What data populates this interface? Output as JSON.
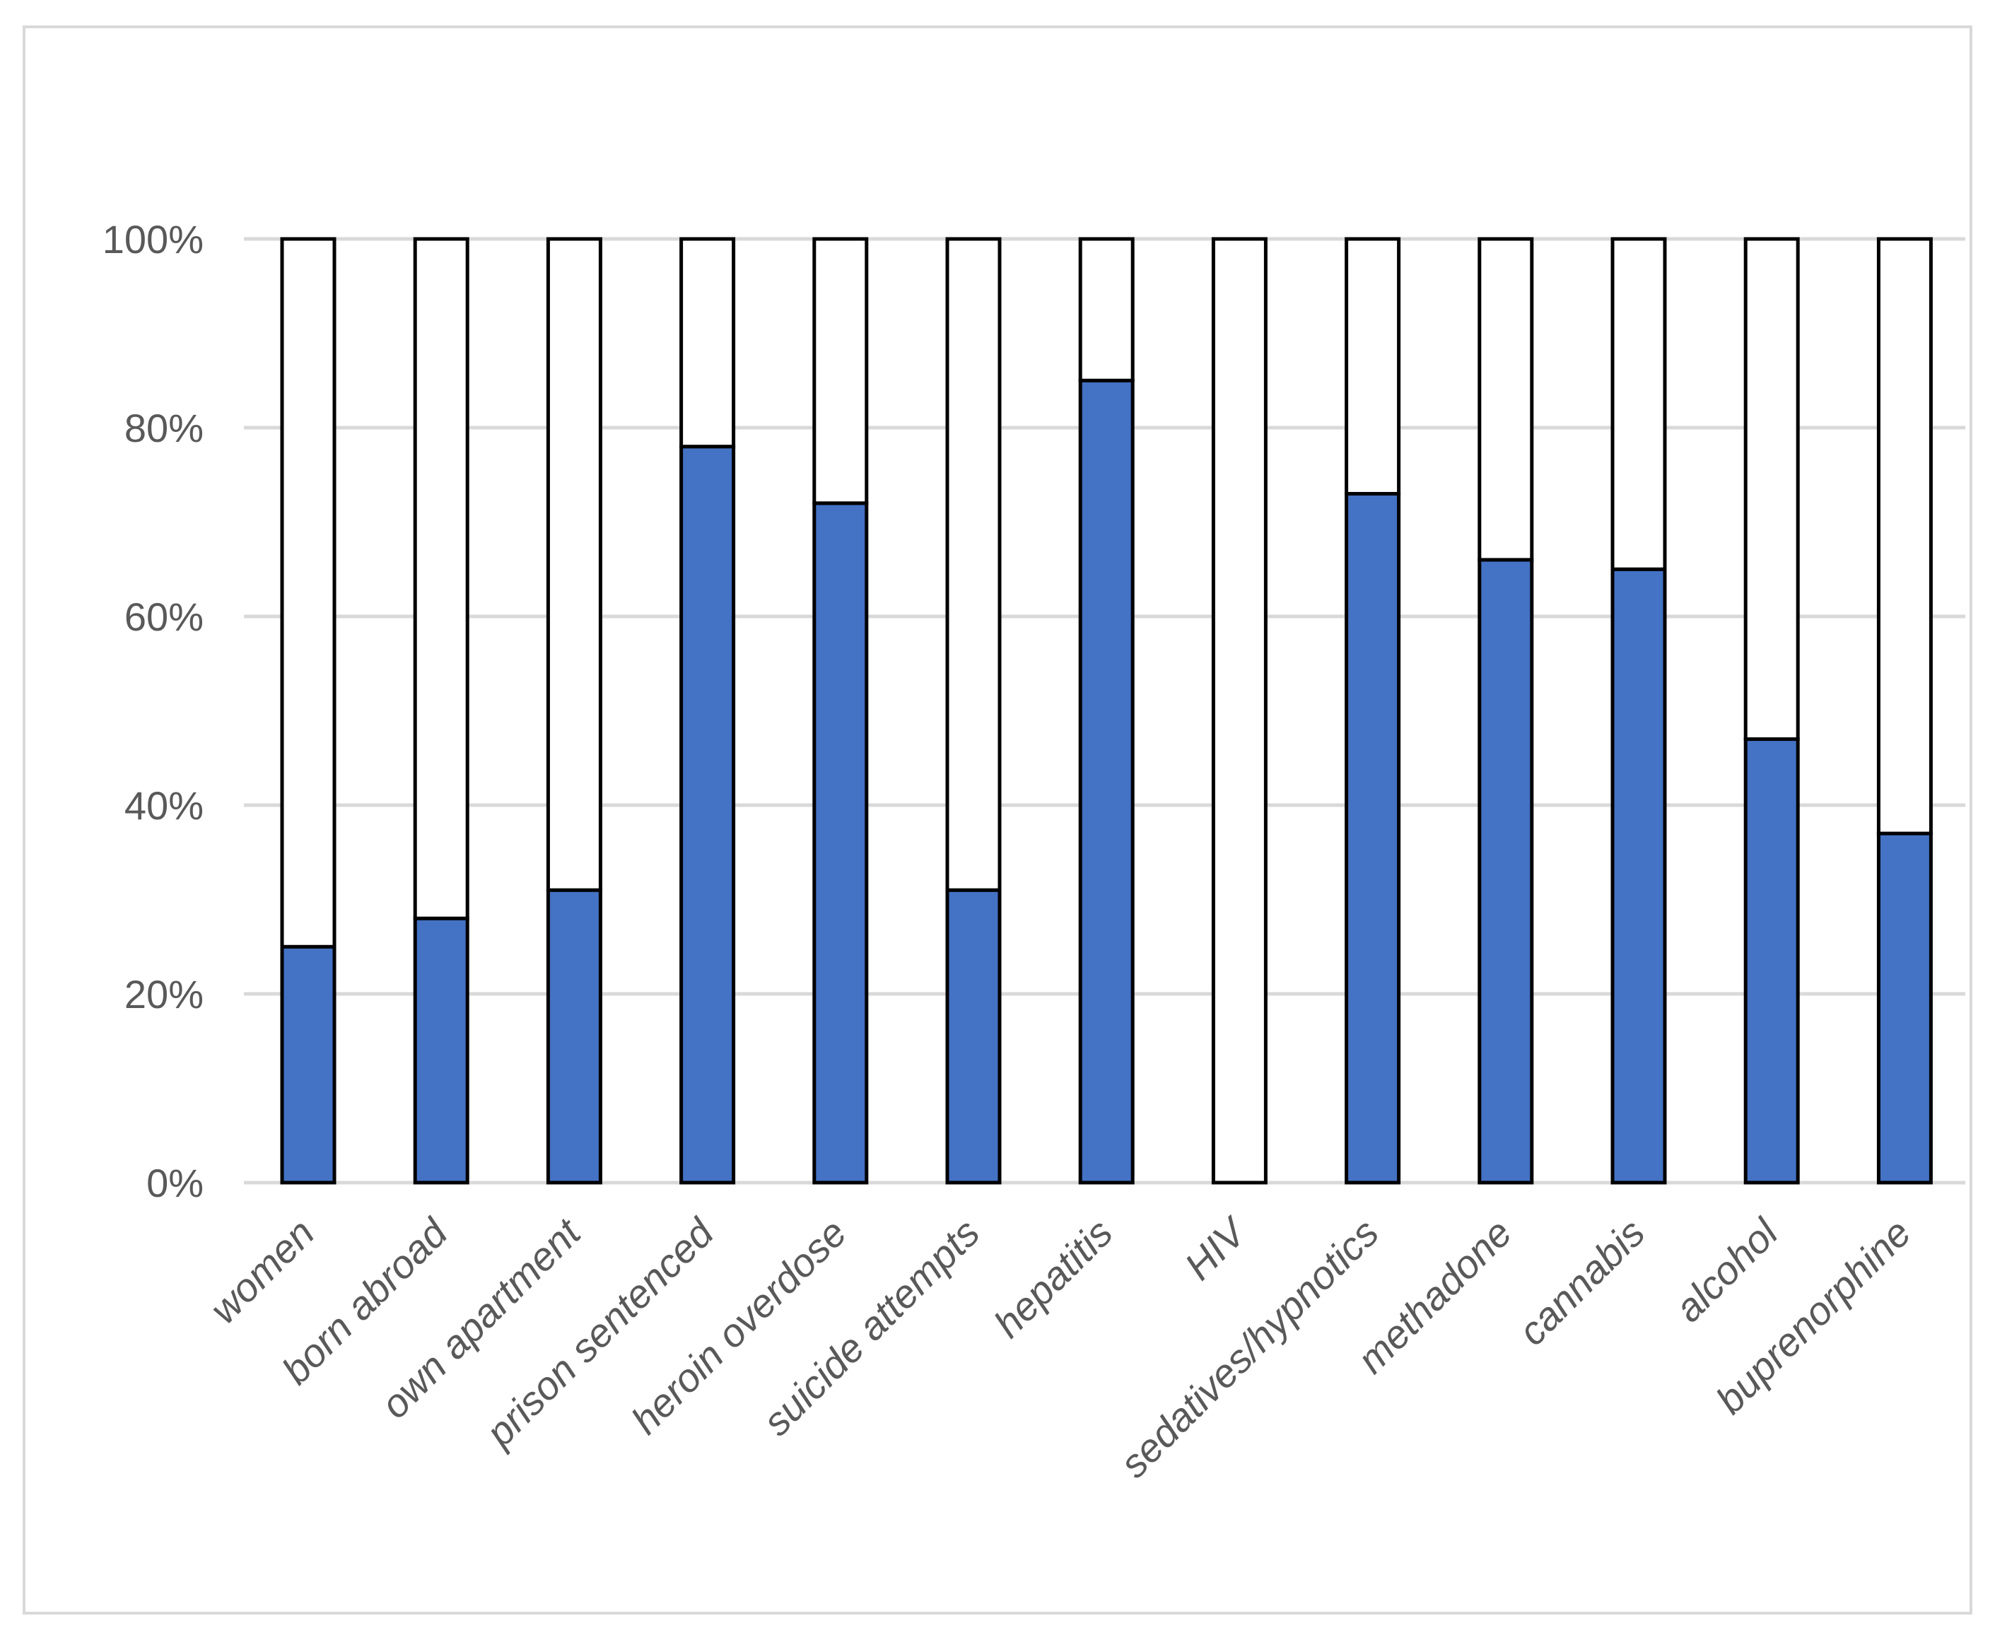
{
  "chart_data": {
    "type": "bar",
    "stacked": true,
    "normalized": true,
    "title": "",
    "xlabel": "",
    "ylabel": "",
    "ylim": [
      0,
      100
    ],
    "y_ticks": [
      "0%",
      "20%",
      "40%",
      "60%",
      "80%",
      "100%"
    ],
    "y_tick_values": [
      0,
      20,
      40,
      60,
      80,
      100
    ],
    "grid": true,
    "legend": "none",
    "categories": [
      "women",
      "born abroad",
      "own apartment",
      "prison sentenced",
      "heroin overdose",
      "suicide attempts",
      "hepatitis",
      "HIV",
      "sedatives/hypnotics",
      "methadone",
      "cannabis",
      "alcohol",
      "buprenorphine"
    ],
    "series": [
      {
        "color": "#4472c4",
        "values": [
          25,
          28,
          31,
          78,
          72,
          31,
          85,
          0,
          73,
          66,
          65,
          47,
          37
        ]
      },
      {
        "color": "#ffffff",
        "values": [
          75,
          72,
          69,
          22,
          28,
          69,
          15,
          100,
          27,
          34,
          35,
          53,
          63
        ]
      }
    ],
    "colors": {
      "grid": "#d9d9d9",
      "outline": "#000000",
      "text": "#595959"
    }
  }
}
